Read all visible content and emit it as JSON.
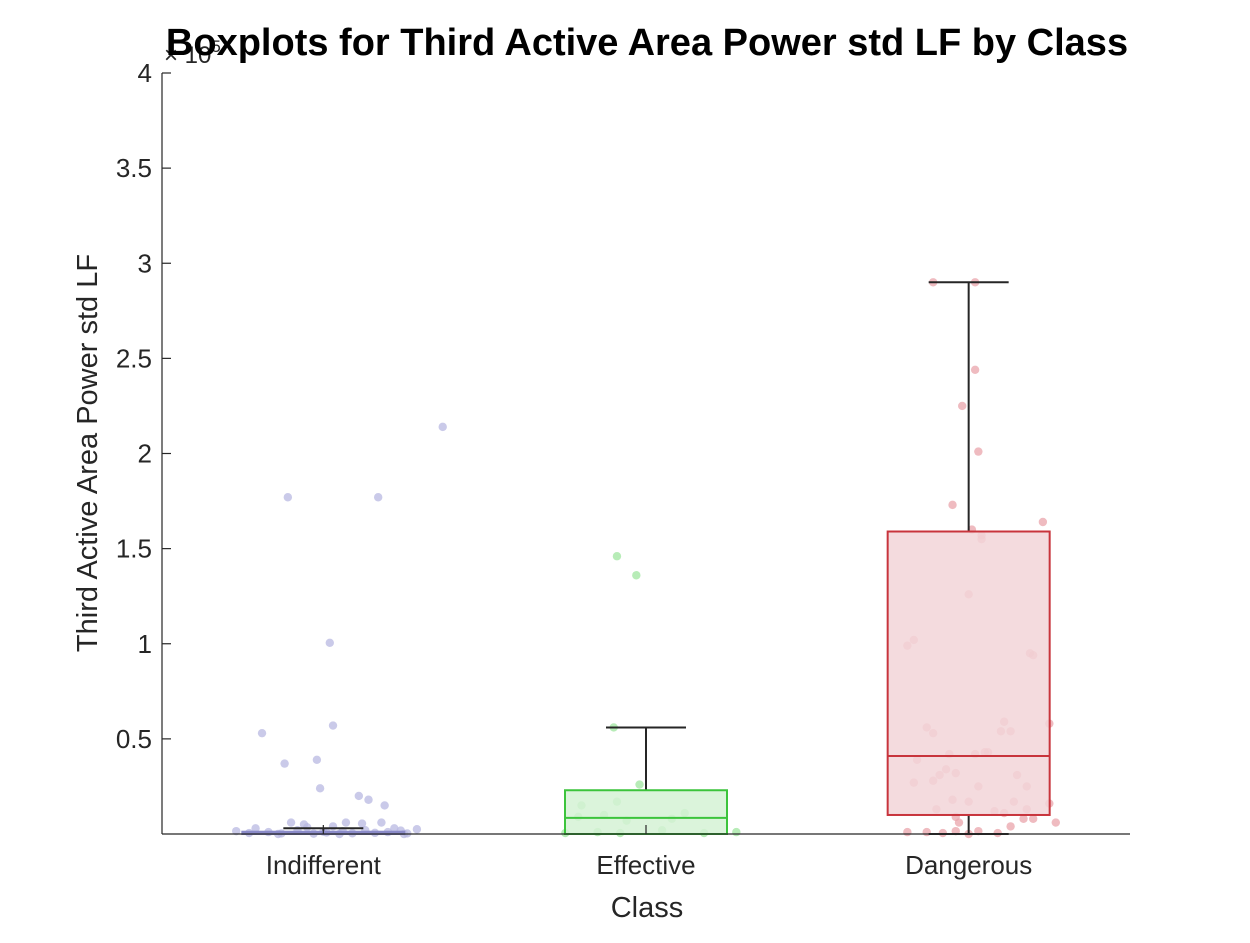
{
  "chart_data": {
    "type": "boxplot",
    "title": "Boxplots for Third Active Area Power std LF by Class",
    "xlabel": "Class",
    "ylabel": "Third Active Area Power std LF",
    "y_exponent_label": "× 10^5",
    "y_exponent_base": "× 10",
    "y_exponent_power": "5",
    "y_scale": 100000,
    "ylim": [
      0,
      400000
    ],
    "yticks": [
      50000,
      100000,
      150000,
      200000,
      250000,
      300000,
      350000,
      400000
    ],
    "ytick_labels": [
      "0.5",
      "1",
      "1.5",
      "2",
      "2.5",
      "3",
      "3.5",
      "4"
    ],
    "categories": [
      "Indifferent",
      "Effective",
      "Dangerous"
    ],
    "grid": false,
    "boxes": [
      {
        "name": "Indifferent",
        "color": "#8a8ac8",
        "fill": "#c9c9ec",
        "point_color": "#b8b8e2",
        "q1": 0,
        "median": 500,
        "q3": 1200,
        "whisker_low": 0,
        "whisker_high": 3000,
        "points": [
          [
            -0.19,
            53000
          ],
          [
            0.37,
            214000
          ],
          [
            -0.11,
            177000
          ],
          [
            0.17,
            177000
          ],
          [
            0.02,
            100500
          ],
          [
            0.03,
            57000
          ],
          [
            -0.12,
            37000
          ],
          [
            -0.02,
            39000
          ],
          [
            -0.01,
            24000
          ],
          [
            0.11,
            20000
          ],
          [
            0.14,
            18000
          ],
          [
            0.19,
            15000
          ],
          [
            -0.1,
            6000
          ],
          [
            -0.06,
            5000
          ],
          [
            0.07,
            6000
          ],
          [
            0.12,
            5500
          ],
          [
            0.18,
            6000
          ],
          [
            -0.21,
            3000
          ],
          [
            -0.05,
            3500
          ],
          [
            0.03,
            4000
          ],
          [
            0.22,
            3000
          ],
          [
            0.29,
            2500
          ],
          [
            -0.27,
            1500
          ],
          [
            -0.17,
            1000
          ],
          [
            -0.08,
            2000
          ],
          [
            0.0,
            1200
          ],
          [
            0.06,
            1500
          ],
          [
            0.13,
            2000
          ],
          [
            0.2,
            1000
          ],
          [
            0.24,
            1800
          ],
          [
            -0.23,
            500
          ],
          [
            -0.13,
            300
          ],
          [
            -0.03,
            200
          ],
          [
            0.09,
            400
          ],
          [
            0.16,
            600
          ],
          [
            0.26,
            300
          ],
          [
            -0.14,
            0
          ],
          [
            0.05,
            0
          ],
          [
            0.25,
            0
          ],
          [
            0.01,
            800
          ]
        ]
      },
      {
        "name": "Effective",
        "color": "#3cc43c",
        "fill": "#d5f2d5",
        "point_color": "#9fe59f",
        "q1": 0,
        "median": 8500,
        "q3": 23000,
        "whisker_low": 0,
        "whisker_high": 56000,
        "points": [
          [
            -0.09,
            146000
          ],
          [
            -0.03,
            136000
          ],
          [
            -0.1,
            56000
          ],
          [
            -0.02,
            26000
          ],
          [
            -0.09,
            17000
          ],
          [
            -0.2,
            15000
          ],
          [
            -0.13,
            10000
          ],
          [
            0.12,
            11000
          ],
          [
            -0.21,
            9000
          ],
          [
            0.08,
            8000
          ],
          [
            -0.06,
            7000
          ],
          [
            0.05,
            2000
          ],
          [
            -0.15,
            1000
          ],
          [
            -0.25,
            500
          ],
          [
            -0.08,
            500
          ],
          [
            0.18,
            500
          ],
          [
            0.28,
            1000
          ]
        ]
      },
      {
        "name": "Dangerous",
        "color": "#c8343c",
        "fill": "#f2d5d8",
        "point_color": "#eaa4ab",
        "q1": 10000,
        "median": 41000,
        "q3": 159000,
        "whisker_low": 0,
        "whisker_high": 290000,
        "points": [
          [
            -0.11,
            290000
          ],
          [
            0.02,
            290000
          ],
          [
            0.02,
            244000
          ],
          [
            -0.02,
            225000
          ],
          [
            0.03,
            201000
          ],
          [
            -0.05,
            173000
          ],
          [
            0.23,
            164000
          ],
          [
            0.01,
            160000
          ],
          [
            0.04,
            157000
          ],
          [
            0.04,
            155000
          ],
          [
            0.0,
            126000
          ],
          [
            -0.17,
            102000
          ],
          [
            -0.19,
            99000
          ],
          [
            0.19,
            95000
          ],
          [
            0.2,
            94000
          ],
          [
            -0.13,
            56000
          ],
          [
            -0.11,
            53000
          ],
          [
            0.11,
            59000
          ],
          [
            0.25,
            58000
          ],
          [
            0.1,
            54000
          ],
          [
            0.13,
            54000
          ],
          [
            0.05,
            43000
          ],
          [
            0.06,
            43000
          ],
          [
            -0.06,
            42000
          ],
          [
            0.02,
            42000
          ],
          [
            -0.16,
            39000
          ],
          [
            -0.07,
            34000
          ],
          [
            -0.04,
            32000
          ],
          [
            -0.09,
            31000
          ],
          [
            0.15,
            31000
          ],
          [
            -0.17,
            27000
          ],
          [
            -0.11,
            28000
          ],
          [
            0.18,
            25000
          ],
          [
            0.03,
            25000
          ],
          [
            -0.05,
            18000
          ],
          [
            0.0,
            17000
          ],
          [
            0.14,
            17000
          ],
          [
            0.18,
            13000
          ],
          [
            0.25,
            16000
          ],
          [
            -0.1,
            13000
          ],
          [
            0.08,
            12000
          ],
          [
            0.11,
            11000
          ],
          [
            -0.04,
            9000
          ],
          [
            0.2,
            8000
          ],
          [
            0.27,
            6000
          ],
          [
            0.17,
            8000
          ],
          [
            -0.03,
            6000
          ],
          [
            0.13,
            4000
          ],
          [
            -0.19,
            1000
          ],
          [
            -0.13,
            1000
          ],
          [
            -0.08,
            500
          ],
          [
            -0.04,
            1500
          ],
          [
            0.0,
            0
          ],
          [
            0.03,
            1500
          ],
          [
            0.09,
            500
          ]
        ]
      }
    ]
  }
}
